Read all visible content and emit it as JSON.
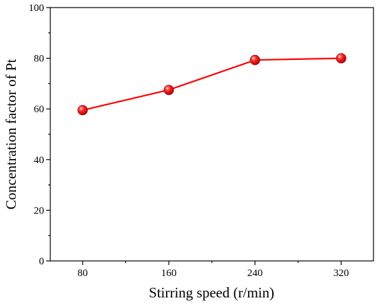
{
  "chart_data": {
    "type": "line",
    "x": [
      80,
      160,
      240,
      320
    ],
    "series": [
      {
        "values": [
          59.5,
          67.5,
          79.3,
          80.0
        ]
      }
    ],
    "xlabel": "Stirring speed (r/min)",
    "ylabel": "Concentration factor of Pt",
    "xticks": [
      "80",
      "160",
      "240",
      "320"
    ],
    "yticks": [
      "0",
      "20",
      "40",
      "60",
      "80",
      "100"
    ],
    "xlim": [
      50,
      350
    ],
    "ylim": [
      0,
      100
    ],
    "grid": false,
    "legend": "none",
    "colors": {
      "series": "#ff0000",
      "axis": "#000000"
    }
  }
}
